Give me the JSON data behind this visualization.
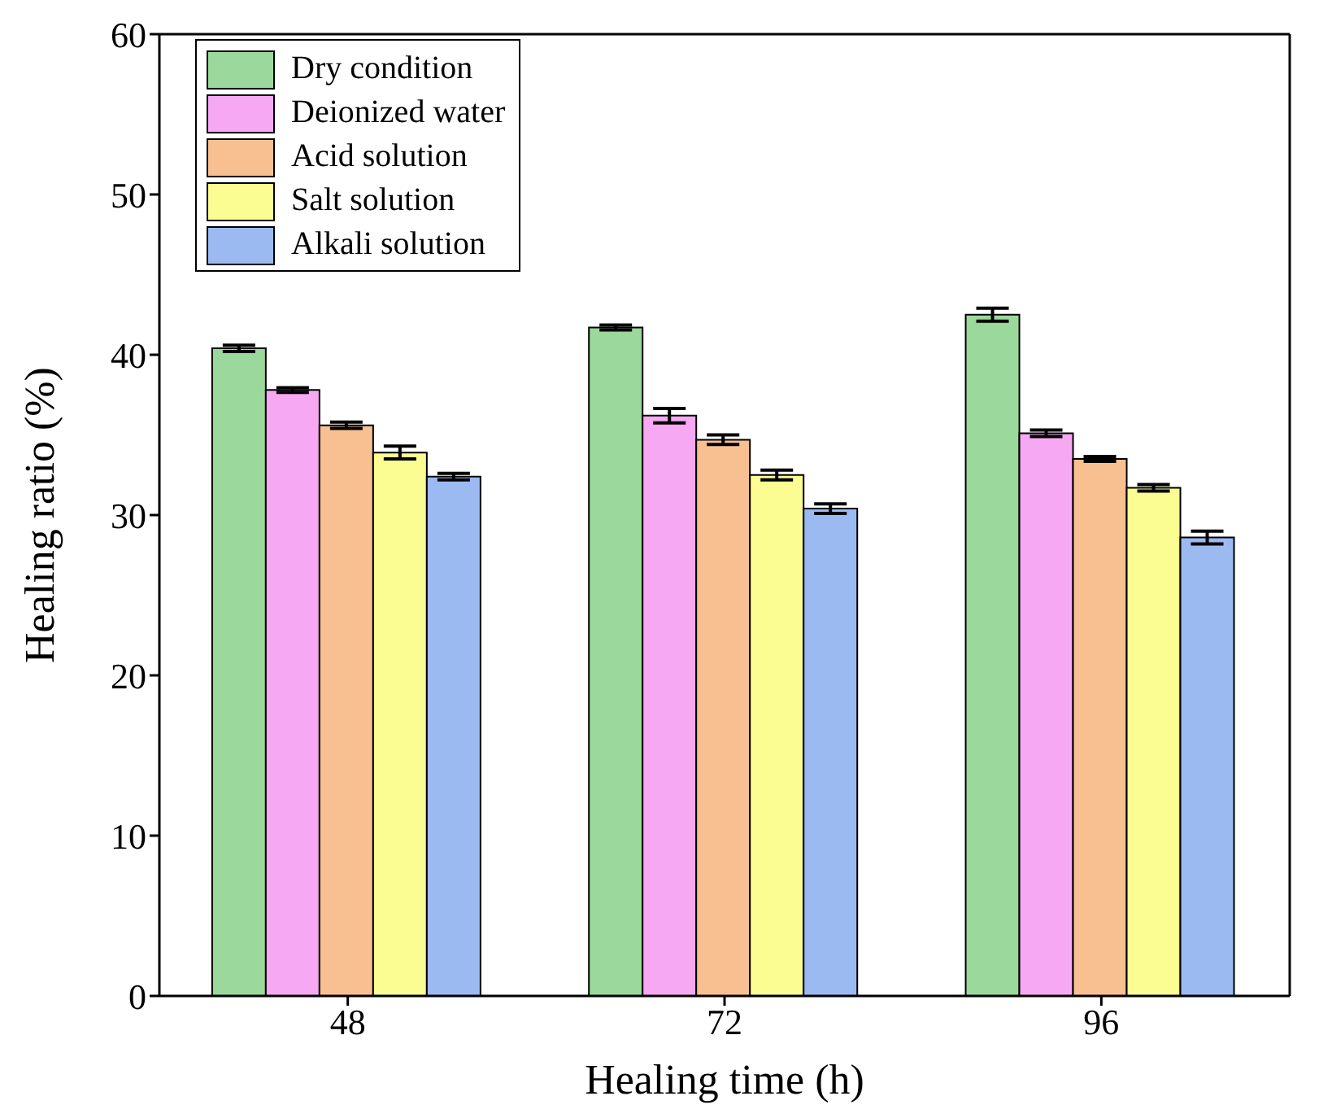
{
  "chart_data": {
    "type": "bar",
    "xlabel": "Healing time (h)",
    "ylabel": "Healing ratio (%)",
    "categories": [
      "48",
      "72",
      "96"
    ],
    "series": [
      {
        "name": "Dry condition",
        "color": "#9bd89b",
        "values": [
          40.4,
          41.7,
          42.5
        ],
        "errors": [
          0.2,
          0.15,
          0.4
        ]
      },
      {
        "name": "Deionized water",
        "color": "#f7a8f3",
        "values": [
          37.8,
          36.2,
          35.1
        ],
        "errors": [
          0.15,
          0.45,
          0.2
        ]
      },
      {
        "name": "Acid solution",
        "color": "#f8c091",
        "values": [
          35.6,
          34.7,
          33.5
        ],
        "errors": [
          0.2,
          0.3,
          0.15
        ]
      },
      {
        "name": "Salt solution",
        "color": "#fbfc91",
        "values": [
          33.9,
          32.5,
          31.7
        ],
        "errors": [
          0.4,
          0.3,
          0.2
        ]
      },
      {
        "name": "Alkali solution",
        "color": "#9cbaf2",
        "values": [
          32.4,
          30.4,
          28.6
        ],
        "errors": [
          0.2,
          0.3,
          0.4
        ]
      }
    ],
    "ylim": [
      0,
      60
    ],
    "yticks": [
      0,
      10,
      20,
      30,
      40,
      50,
      60
    ],
    "grid": false,
    "legend": "top left"
  }
}
